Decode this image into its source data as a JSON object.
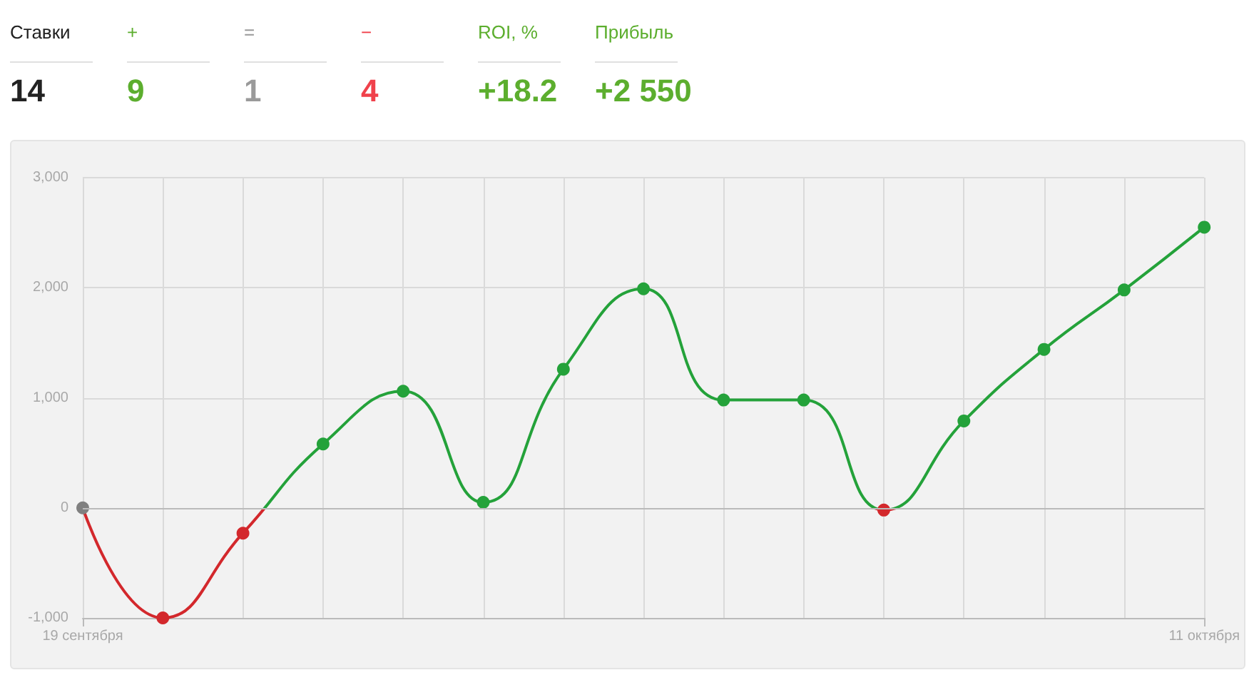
{
  "chart_data": [
    {
      "type": "other",
      "categories": [
        "Ставки",
        "+",
        "=",
        "−",
        "ROI, %",
        "Прибыль"
      ],
      "value_labels": [
        "14",
        "9",
        "1",
        "4",
        "+18.2",
        "+2 550"
      ],
      "colors": [
        "#222222",
        "#5cae2e",
        "#9a9a9a",
        "#f0414b",
        "#5cae2e",
        "#5cae2e"
      ]
    },
    {
      "type": "line",
      "categories": [
        "19 сентября",
        null,
        null,
        null,
        null,
        null,
        null,
        null,
        null,
        null,
        null,
        null,
        null,
        null,
        "11 октября"
      ],
      "series": [
        {
          "color": "#24a23a",
          "values": [
            0,
            -1000,
            -230,
            580,
            1060,
            50,
            1260,
            1990,
            980,
            980,
            -20,
            790,
            1440,
            1980,
            2550
          ],
          "colors": [
            "#808080",
            "#d3282c",
            "#d3282c",
            "#24a23a",
            "#24a23a",
            "#24a23a",
            "#24a23a",
            "#24a23a",
            "#24a23a",
            "#24a23a",
            "#d3282c",
            "#24a23a",
            "#24a23a",
            "#24a23a",
            "#24a23a"
          ]
        }
      ],
      "ylim": [
        -1000,
        3000
      ],
      "yticks": [
        {
          "value": -1000,
          "label": "-1,000"
        },
        0,
        {
          "value": 1000,
          "label": "1,000"
        },
        {
          "value": 2000,
          "label": "2,000"
        },
        {
          "value": 3000,
          "label": "3,000"
        }
      ],
      "grid": true,
      "marker": "circle",
      "line_style": "solid",
      "ref_lines": [
        {
          "axis": "y",
          "value": 0,
          "color": "#bbbbbb"
        }
      ]
    }
  ]
}
